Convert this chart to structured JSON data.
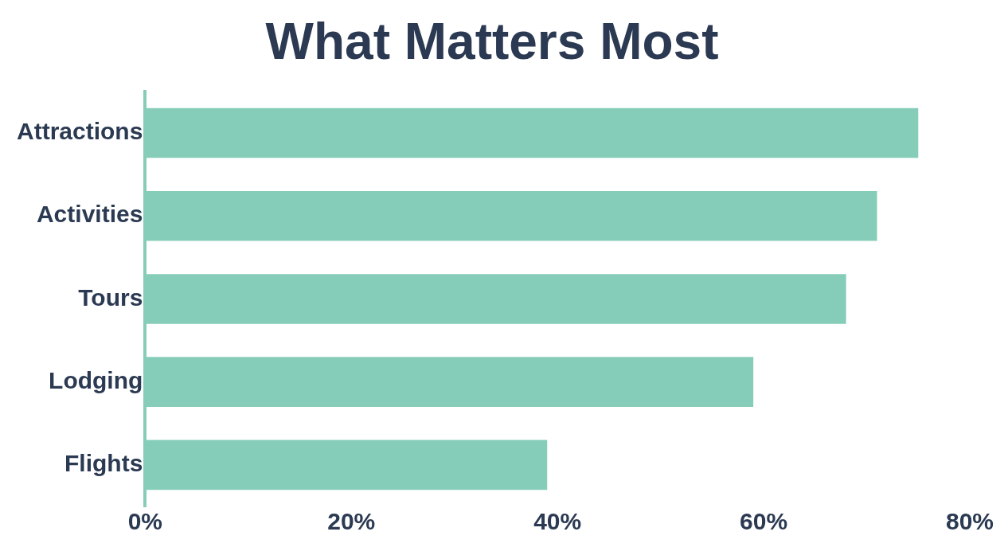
{
  "chart_data": {
    "type": "bar",
    "orientation": "horizontal",
    "title": "What Matters Most",
    "categories": [
      "Attractions",
      "Activities",
      "Tours",
      "Lodging",
      "Flights"
    ],
    "values": [
      75,
      71,
      68,
      59,
      39
    ],
    "color": "#86cdb9",
    "xlim": [
      0,
      80
    ],
    "xticks": [
      {
        "value": 0,
        "label": "0%"
      },
      {
        "value": 20,
        "label": "20%"
      },
      {
        "value": 40,
        "label": "40%"
      },
      {
        "value": 60,
        "label": "60%"
      },
      {
        "value": 80,
        "label": "80%"
      }
    ],
    "grid": false,
    "legend": false
  }
}
